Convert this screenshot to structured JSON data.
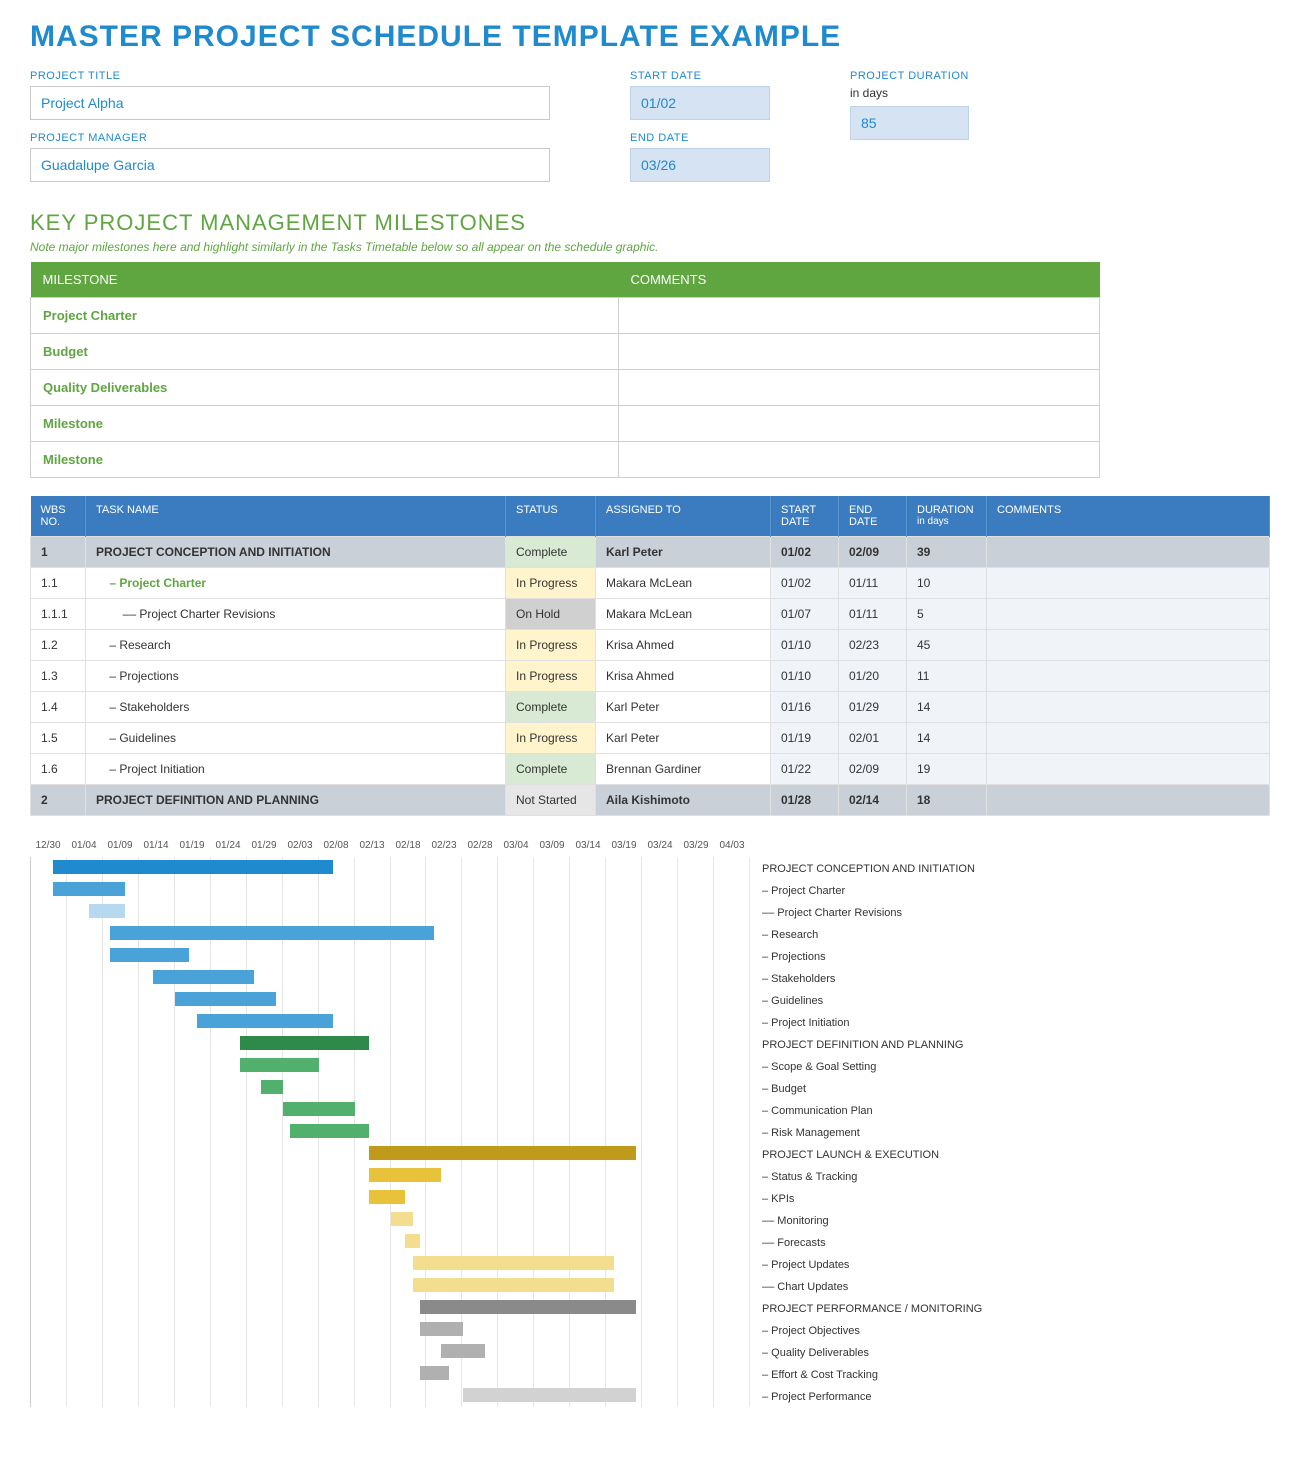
{
  "title": "MASTER PROJECT SCHEDULE TEMPLATE EXAMPLE",
  "fields": {
    "project_title_label": "PROJECT TITLE",
    "project_title": "Project Alpha",
    "project_manager_label": "PROJECT MANAGER",
    "project_manager": "Guadalupe Garcia",
    "start_date_label": "START DATE",
    "start_date": "01/02",
    "end_date_label": "END DATE",
    "end_date": "03/26",
    "duration_label": "PROJECT DURATION",
    "duration_sublabel": "in days",
    "duration": "85"
  },
  "milestones_section": {
    "title": "KEY PROJECT MANAGEMENT MILESTONES",
    "note": "Note major milestones here and highlight similarly in the Tasks Timetable below so all appear on the schedule graphic.",
    "headers": {
      "milestone": "MILESTONE",
      "comments": "COMMENTS"
    },
    "rows": [
      {
        "milestone": "Project Charter",
        "comments": ""
      },
      {
        "milestone": "Budget",
        "comments": ""
      },
      {
        "milestone": "Quality Deliverables",
        "comments": ""
      },
      {
        "milestone": "Milestone",
        "comments": ""
      },
      {
        "milestone": "Milestone",
        "comments": ""
      }
    ]
  },
  "tasks_section": {
    "headers": {
      "wbs": "WBS NO.",
      "name": "TASK NAME",
      "status": "STATUS",
      "assigned": "ASSIGNED TO",
      "start": "START DATE",
      "end": "END DATE",
      "duration": "DURATION",
      "duration_sub": "in days",
      "comments": "COMMENTS"
    },
    "rows": [
      {
        "wbs": "1",
        "name": "PROJECT CONCEPTION AND INITIATION",
        "status": "Complete",
        "assigned": "Karl Peter",
        "start": "01/02",
        "end": "02/09",
        "duration": "39",
        "comments": "",
        "type": "phase"
      },
      {
        "wbs": "1.1",
        "name": "– Project Charter",
        "status": "In Progress",
        "assigned": "Makara McLean",
        "start": "01/02",
        "end": "01/11",
        "duration": "10",
        "comments": "",
        "type": "milestone"
      },
      {
        "wbs": "1.1.1",
        "name": "–– Project Charter Revisions",
        "status": "On Hold",
        "assigned": "Makara McLean",
        "start": "01/07",
        "end": "01/11",
        "duration": "5",
        "comments": "",
        "type": "task"
      },
      {
        "wbs": "1.2",
        "name": "– Research",
        "status": "In Progress",
        "assigned": "Krisa Ahmed",
        "start": "01/10",
        "end": "02/23",
        "duration": "45",
        "comments": "",
        "type": "task"
      },
      {
        "wbs": "1.3",
        "name": "– Projections",
        "status": "In Progress",
        "assigned": "Krisa Ahmed",
        "start": "01/10",
        "end": "01/20",
        "duration": "11",
        "comments": "",
        "type": "task"
      },
      {
        "wbs": "1.4",
        "name": "– Stakeholders",
        "status": "Complete",
        "assigned": "Karl Peter",
        "start": "01/16",
        "end": "01/29",
        "duration": "14",
        "comments": "",
        "type": "task"
      },
      {
        "wbs": "1.5",
        "name": "– Guidelines",
        "status": "In Progress",
        "assigned": "Karl Peter",
        "start": "01/19",
        "end": "02/01",
        "duration": "14",
        "comments": "",
        "type": "task"
      },
      {
        "wbs": "1.6",
        "name": "– Project Initiation",
        "status": "Complete",
        "assigned": "Brennan Gardiner",
        "start": "01/22",
        "end": "02/09",
        "duration": "19",
        "comments": "",
        "type": "task"
      },
      {
        "wbs": "2",
        "name": "PROJECT DEFINITION AND PLANNING",
        "status": "Not Started",
        "assigned": "Aila Kishimoto",
        "start": "01/28",
        "end": "02/14",
        "duration": "18",
        "comments": "",
        "type": "phase"
      }
    ]
  },
  "gantt": {
    "start_day": 0,
    "day_width": 7.2,
    "dates": [
      "12/30",
      "01/04",
      "01/09",
      "01/14",
      "01/19",
      "01/24",
      "01/29",
      "02/03",
      "02/08",
      "02/13",
      "02/18",
      "02/23",
      "02/28",
      "03/04",
      "03/09",
      "03/14",
      "03/19",
      "03/24",
      "03/29",
      "04/03"
    ],
    "colors": {
      "blue_dark": "#1f8ace",
      "blue": "#4aa3d8",
      "blue_light": "#b6d9ef",
      "green_dark": "#2f8a4a",
      "green": "#51b06c",
      "green_light": "#84ce96",
      "gold_dark": "#c09a1a",
      "gold": "#e7c23a",
      "gold_light": "#f3de90",
      "gray_dark": "#8a8a8a",
      "gray": "#b0b0b0",
      "gray_light": "#d2d2d2"
    },
    "rows": [
      {
        "label": "PROJECT CONCEPTION AND INITIATION",
        "start": 3,
        "dur": 39,
        "color": "blue_dark"
      },
      {
        "label": "– Project Charter",
        "start": 3,
        "dur": 10,
        "color": "blue"
      },
      {
        "label": "–– Project Charter Revisions",
        "start": 8,
        "dur": 5,
        "color": "blue_light"
      },
      {
        "label": "– Research",
        "start": 11,
        "dur": 45,
        "color": "blue"
      },
      {
        "label": "– Projections",
        "start": 11,
        "dur": 11,
        "color": "blue"
      },
      {
        "label": "– Stakeholders",
        "start": 17,
        "dur": 14,
        "color": "blue"
      },
      {
        "label": "– Guidelines",
        "start": 20,
        "dur": 14,
        "color": "blue"
      },
      {
        "label": "– Project Initiation",
        "start": 23,
        "dur": 19,
        "color": "blue"
      },
      {
        "label": "PROJECT DEFINITION AND PLANNING",
        "start": 29,
        "dur": 18,
        "color": "green_dark"
      },
      {
        "label": "– Scope & Goal Setting",
        "start": 29,
        "dur": 11,
        "color": "green"
      },
      {
        "label": "– Budget",
        "start": 32,
        "dur": 3,
        "color": "green"
      },
      {
        "label": "– Communication Plan",
        "start": 35,
        "dur": 10,
        "color": "green"
      },
      {
        "label": "– Risk Management",
        "start": 36,
        "dur": 11,
        "color": "green"
      },
      {
        "label": "PROJECT LAUNCH & EXECUTION",
        "start": 47,
        "dur": 37,
        "color": "gold_dark"
      },
      {
        "label": "– Status & Tracking",
        "start": 47,
        "dur": 10,
        "color": "gold"
      },
      {
        "label": "– KPIs",
        "start": 47,
        "dur": 5,
        "color": "gold"
      },
      {
        "label": "–– Monitoring",
        "start": 50,
        "dur": 3,
        "color": "gold_light"
      },
      {
        "label": "–– Forecasts",
        "start": 52,
        "dur": 2,
        "color": "gold_light"
      },
      {
        "label": "– Project Updates",
        "start": 53,
        "dur": 28,
        "color": "gold_light"
      },
      {
        "label": "–– Chart Updates",
        "start": 53,
        "dur": 28,
        "color": "gold_light"
      },
      {
        "label": "PROJECT PERFORMANCE / MONITORING",
        "start": 54,
        "dur": 30,
        "color": "gray_dark"
      },
      {
        "label": "– Project Objectives",
        "start": 54,
        "dur": 6,
        "color": "gray"
      },
      {
        "label": "– Quality Deliverables",
        "start": 57,
        "dur": 6,
        "color": "gray"
      },
      {
        "label": "– Effort & Cost Tracking",
        "start": 54,
        "dur": 4,
        "color": "gray"
      },
      {
        "label": "– Project Performance",
        "start": 60,
        "dur": 24,
        "color": "gray_light"
      }
    ]
  }
}
